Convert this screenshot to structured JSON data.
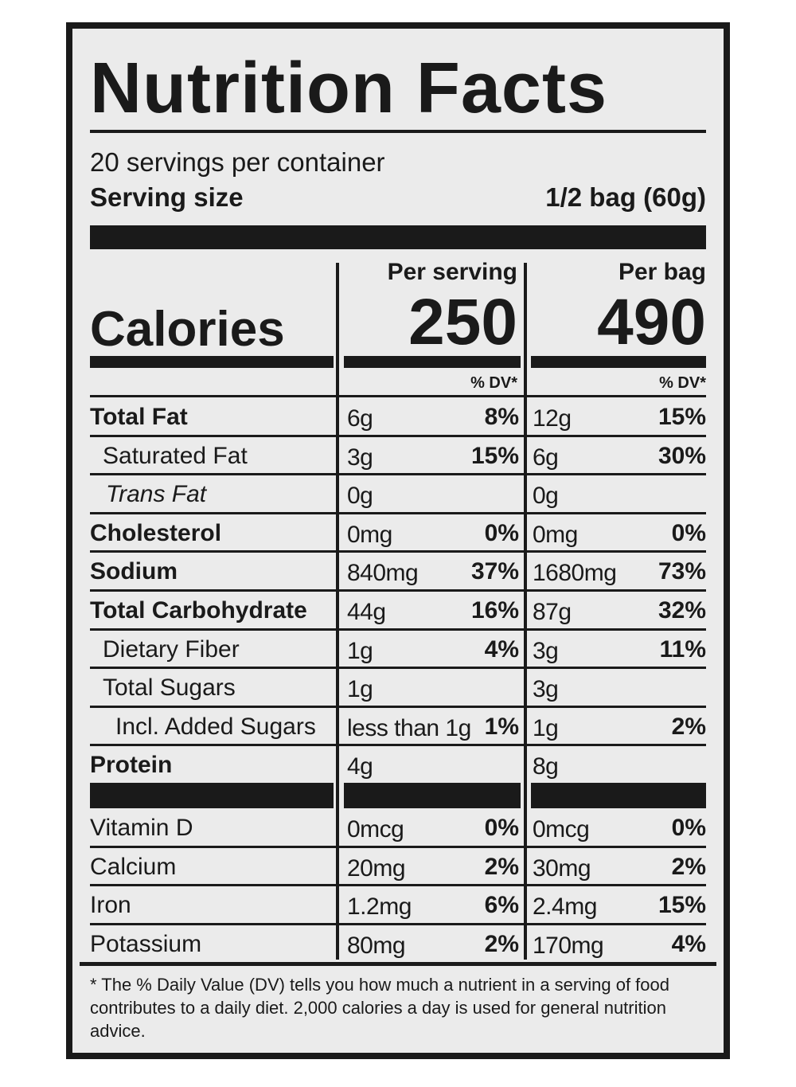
{
  "title": "Nutrition Facts",
  "servings": "20 servings per container",
  "serving_size": {
    "label": "Serving size",
    "value": "1/2 bag (60g)"
  },
  "columns": [
    "Per serving",
    "Per bag"
  ],
  "calories": {
    "label": "Calories",
    "per_serving": "250",
    "per_bag": "490"
  },
  "dv_header": [
    "% DV*",
    "% DV*"
  ],
  "nutrients": [
    {
      "name": "Total Fat",
      "per_serving": {
        "amount": "6g",
        "dv": "8%"
      },
      "per_bag": {
        "amount": "12g",
        "dv": "15%"
      }
    },
    {
      "name": "Saturated Fat",
      "per_serving": {
        "amount": "3g",
        "dv": "15%"
      },
      "per_bag": {
        "amount": "6g",
        "dv": "30%"
      }
    },
    {
      "name": "Trans Fat",
      "per_serving": {
        "amount": "0g"
      },
      "per_bag": {
        "amount": "0g"
      }
    },
    {
      "name": "Cholesterol",
      "per_serving": {
        "amount": "0mg",
        "dv": "0%"
      },
      "per_bag": {
        "amount": "0mg",
        "dv": "0%"
      }
    },
    {
      "name": "Sodium",
      "per_serving": {
        "amount": "840mg",
        "dv": "37%"
      },
      "per_bag": {
        "amount": "1680mg",
        "dv": "73%"
      }
    },
    {
      "name": "Total Carbohydrate",
      "per_serving": {
        "amount": "44g",
        "dv": "16%"
      },
      "per_bag": {
        "amount": "87g",
        "dv": "32%"
      }
    },
    {
      "name": "Dietary Fiber",
      "per_serving": {
        "amount": "1g",
        "dv": "4%"
      },
      "per_bag": {
        "amount": "3g",
        "dv": "11%"
      }
    },
    {
      "name": "Total Sugars",
      "per_serving": {
        "amount": "1g"
      },
      "per_bag": {
        "amount": "3g"
      }
    },
    {
      "name": "Incl. Added Sugars",
      "per_serving": {
        "amount": "less than 1g",
        "dv": "1%"
      },
      "per_bag": {
        "amount": "1g",
        "dv": "2%"
      }
    },
    {
      "name": "Protein",
      "per_serving": {
        "amount": "4g"
      },
      "per_bag": {
        "amount": "8g"
      }
    }
  ],
  "vitamins": [
    {
      "name": "Vitamin D",
      "per_serving": {
        "amount": "0mcg",
        "dv": "0%"
      },
      "per_bag": {
        "amount": "0mcg",
        "dv": "0%"
      }
    },
    {
      "name": "Calcium",
      "per_serving": {
        "amount": "20mg",
        "dv": "2%"
      },
      "per_bag": {
        "amount": "30mg",
        "dv": "2%"
      }
    },
    {
      "name": "Iron",
      "per_serving": {
        "amount": "1.2mg",
        "dv": "6%"
      },
      "per_bag": {
        "amount": "2.4mg",
        "dv": "15%"
      }
    },
    {
      "name": "Potassium",
      "per_serving": {
        "amount": "80mg",
        "dv": "2%"
      },
      "per_bag": {
        "amount": "170mg",
        "dv": "4%"
      }
    }
  ],
  "footnote": "* The % Daily Value (DV) tells you how much a nutrient in a serving of food contributes to a daily diet. 2,000 calories a day is used for general nutrition advice."
}
